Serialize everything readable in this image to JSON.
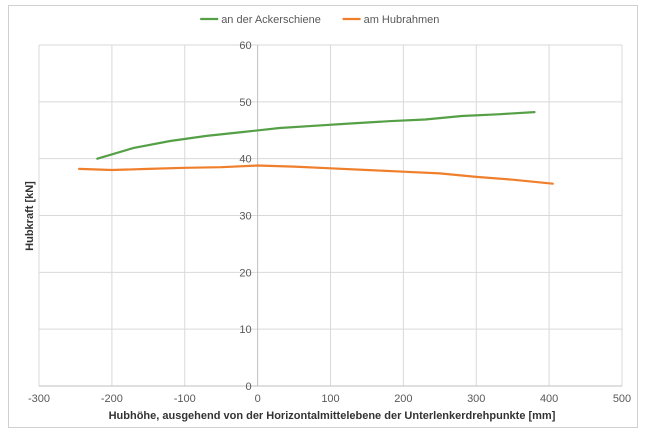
{
  "chart_data": {
    "type": "line",
    "xlabel": "Hubhöhe, ausgehend von der Horizontalmittelebene der Unterlenkerdrehpunkte [mm]",
    "ylabel": "Hubkraft [kN]",
    "xlim": [
      -300,
      500
    ],
    "ylim": [
      0,
      60
    ],
    "x_ticks": [
      -300,
      -200,
      -100,
      0,
      100,
      200,
      300,
      400,
      500
    ],
    "y_ticks": [
      0,
      10,
      20,
      30,
      40,
      50,
      60
    ],
    "x_tick_labels": [
      "-300",
      "-200",
      "-100",
      "0",
      "100",
      "200",
      "300",
      "400",
      "500"
    ],
    "y_tick_labels": [
      "0",
      "10",
      "20",
      "30",
      "40",
      "50",
      "60"
    ],
    "grid": true,
    "legend_position": "top",
    "series": [
      {
        "name": "an der Ackerschiene",
        "color": "#55a046",
        "x": [
          -220,
          -170,
          -120,
          -70,
          -20,
          30,
          80,
          130,
          180,
          230,
          280,
          330,
          380
        ],
        "y": [
          40.0,
          41.9,
          43.1,
          44.0,
          44.7,
          45.4,
          45.8,
          46.2,
          46.6,
          46.9,
          47.5,
          47.8,
          48.2
        ]
      },
      {
        "name": "am Hubrahmen",
        "color": "#f07f2c",
        "x": [
          -245,
          -200,
          -150,
          -100,
          -50,
          0,
          50,
          100,
          150,
          200,
          250,
          300,
          350,
          405
        ],
        "y": [
          38.2,
          38.0,
          38.2,
          38.4,
          38.5,
          38.8,
          38.6,
          38.3,
          38.0,
          37.7,
          37.4,
          36.8,
          36.3,
          35.6
        ]
      }
    ]
  }
}
